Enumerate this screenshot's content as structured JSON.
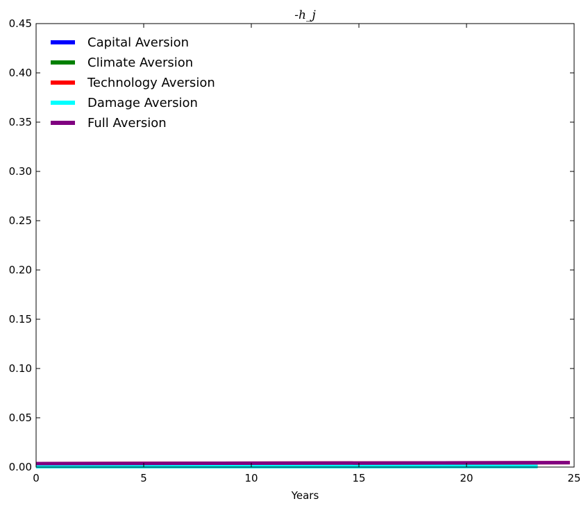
{
  "chart_data": {
    "type": "line",
    "title": "-h_j",
    "xlabel": "Years",
    "ylabel": "",
    "xlim": [
      0,
      25
    ],
    "ylim": [
      0,
      0.45
    ],
    "x_ticks": [
      0,
      5,
      10,
      15,
      20,
      25
    ],
    "x_tick_labels": [
      "0",
      "5",
      "10",
      "15",
      "20",
      "25"
    ],
    "y_ticks": [
      0,
      0.05,
      0.1,
      0.15,
      0.2,
      0.25,
      0.3,
      0.35,
      0.4,
      0.45
    ],
    "y_tick_labels": [
      "0.00",
      "0.05",
      "0.10",
      "0.15",
      "0.20",
      "0.25",
      "0.30",
      "0.35",
      "0.40",
      "0.45"
    ],
    "grid": false,
    "legend_position": "top-left",
    "series": [
      {
        "name": "Capital Aversion",
        "color": "#0000ff",
        "x": [
          0,
          23.3
        ],
        "y": [
          0.0005,
          0.0006
        ]
      },
      {
        "name": "Climate Aversion",
        "color": "#008000",
        "x": [
          0,
          23.3
        ],
        "y": [
          0.0005,
          0.0006
        ]
      },
      {
        "name": "Technology Aversion",
        "color": "#ff0000",
        "x": [
          0,
          24.8
        ],
        "y": [
          0.0035,
          0.0045
        ]
      },
      {
        "name": "Damage Aversion",
        "color": "#00ffff",
        "x": [
          0,
          23.3
        ],
        "y": [
          0.0005,
          0.0006
        ]
      },
      {
        "name": "Full Aversion",
        "color": "#800080",
        "x": [
          0,
          24.8
        ],
        "y": [
          0.0035,
          0.0045
        ]
      }
    ]
  }
}
